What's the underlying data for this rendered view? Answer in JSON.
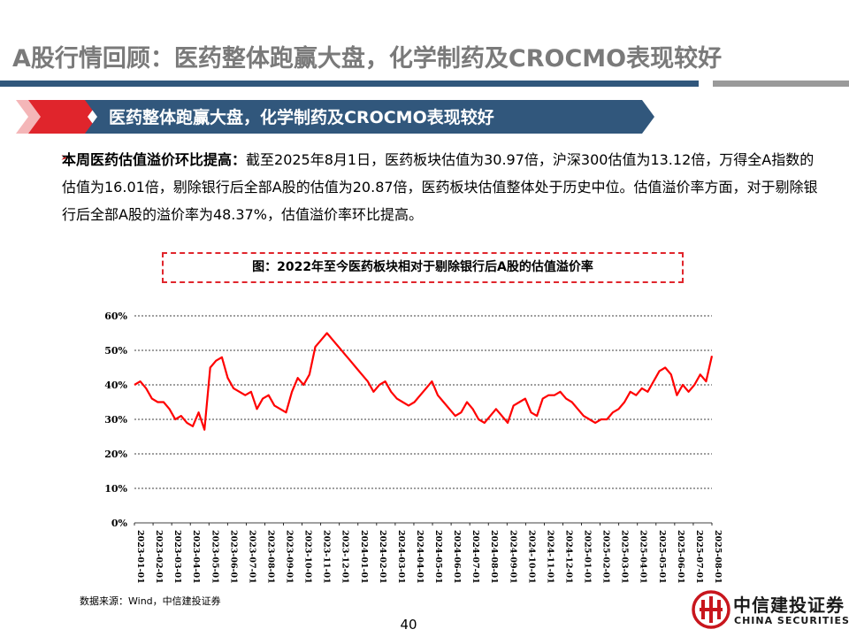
{
  "page": {
    "title": "A股行情回顾：医药整体跑赢大盘，化学制药及CROCMO表现较好",
    "banner": "医药整体跑赢大盘，化学制药及CROCMO表现较好",
    "bullet_lead": "本周医药估值溢价环比提高：",
    "bullet_body": "截至2025年8月1日，医药板块估值为30.97倍，沪深300估值为13.12倍，万得全A指数的估值为16.01倍，剔除银行后全部A股的估值为20.87倍，医药板块估值整体处于历史中位。估值溢价率方面，对于剔除银行后全部A股的溢价率为48.37%，估值溢价率环比提高。",
    "figure_caption": "图：2022年至今医药板块相对于剔除银行后A股的估值溢价率",
    "source": "数据来源：Wind，中信建投证券",
    "page_number": "40",
    "logo_cn": "中信建投证券",
    "logo_en": "CHINA SECURITIES"
  },
  "colors": {
    "title_gray": "#7a7a7a",
    "bar_blue": "#31577c",
    "banner_red": "#e0252c",
    "line_red": "#ff0000",
    "logo_red": "#c8161d"
  },
  "chart_data": {
    "type": "line",
    "ylim": [
      0,
      60
    ],
    "y_ticks": [
      "0%",
      "10%",
      "20%",
      "30%",
      "40%",
      "50%",
      "60%"
    ],
    "x_labels": [
      "2023-01-01",
      "2023-02-01",
      "2023-03-01",
      "2023-04-01",
      "2023-05-01",
      "2023-06-01",
      "2023-07-01",
      "2023-08-01",
      "2023-09-01",
      "2023-10-01",
      "2023-11-01",
      "2023-12-01",
      "2024-01-01",
      "2024-02-01",
      "2024-03-01",
      "2024-04-01",
      "2024-05-01",
      "2024-06-01",
      "2024-07-01",
      "2024-08-01",
      "2024-09-01",
      "2024-10-01",
      "2024-11-01",
      "2024-12-01",
      "2025-01-01",
      "2025-02-01",
      "2025-03-01",
      "2025-04-01",
      "2025-05-01",
      "2025-06-01",
      "2025-07-01",
      "2025-08-01"
    ],
    "grid": "horizontal dashed",
    "series": [
      {
        "values": [
          40,
          41,
          39,
          36,
          35,
          35,
          33,
          30,
          31,
          29,
          28,
          32,
          27,
          45,
          47,
          48,
          42,
          39,
          38,
          37,
          38,
          33,
          36,
          37,
          34,
          33,
          32,
          38,
          42,
          40,
          43,
          51,
          53,
          55,
          53,
          51,
          49,
          47,
          45,
          43,
          41,
          38,
          40,
          41,
          38,
          36,
          35,
          34,
          35,
          37,
          39,
          41,
          37,
          35,
          33,
          31,
          32,
          35,
          33,
          30,
          29,
          31,
          33,
          31,
          29,
          34,
          35,
          36,
          32,
          31,
          36,
          37,
          37,
          38,
          36,
          35,
          33,
          31,
          30,
          29,
          30,
          30,
          32,
          33,
          35,
          38,
          37,
          39,
          38,
          41,
          44,
          45,
          43,
          37,
          40,
          38,
          40,
          43,
          41,
          48.4
        ]
      }
    ]
  }
}
